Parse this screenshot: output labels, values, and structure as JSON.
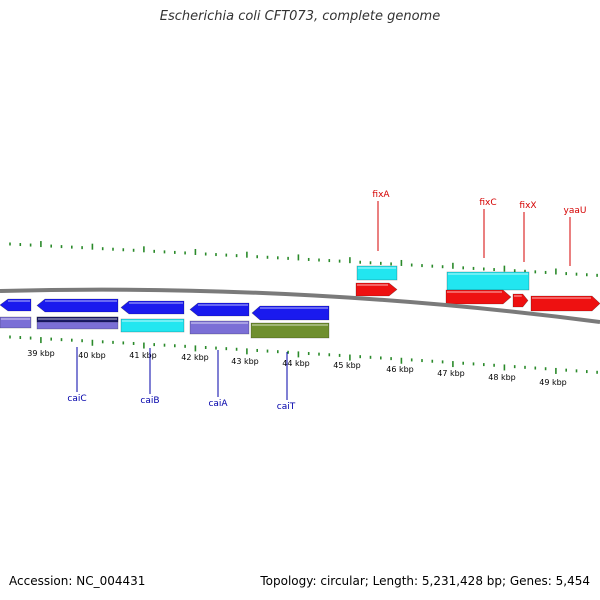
{
  "header": {
    "title": "Escherichia coli CFT073, complete genome"
  },
  "colors": {
    "backbone": "#7a7a7a",
    "tick": "#2a8a2a",
    "label_forward": "#d40000",
    "label_reverse": "#0000aa"
  },
  "scale": {
    "unit": "kbp",
    "tick_labels": [
      "39 kbp",
      "40 kbp",
      "41 kbp",
      "42 kbp",
      "43 kbp",
      "44 kbp",
      "45 kbp",
      "46 kbp",
      "47 kbp",
      "48 kbp",
      "49 kbp"
    ]
  },
  "genes": {
    "forward_labeled": [
      {
        "name": "fixA",
        "color": "#d40000"
      },
      {
        "name": "fixC",
        "color": "#d40000"
      },
      {
        "name": "fixX",
        "color": "#d40000"
      },
      {
        "name": "yaaU",
        "color": "#d40000"
      }
    ],
    "reverse_labeled": [
      {
        "name": "caiC",
        "color": "#0000aa"
      },
      {
        "name": "caiB",
        "color": "#0000aa"
      },
      {
        "name": "caiA",
        "color": "#0000aa"
      },
      {
        "name": "caiT",
        "color": "#0000aa"
      }
    ],
    "feature_colors": {
      "forward_cds": "#ee1111",
      "reverse_cds": "#1a1aee",
      "cyan_feature": "#22e6f0",
      "purple_feature": "#7b6fd6",
      "dark_feature": "#1a1a66",
      "olive_feature": "#6f8f2f"
    }
  },
  "footer": {
    "accession": "Accession: NC_004431",
    "summary": "Topology: circular; Length: 5,231,428 bp; Genes: 5,454"
  }
}
